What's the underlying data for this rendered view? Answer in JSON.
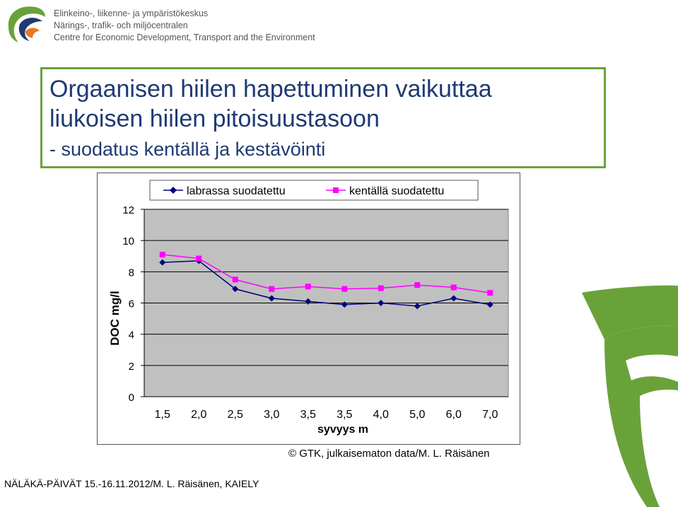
{
  "header": {
    "org_line1": "Elinkeino-, liikenne- ja ympäristökeskus",
    "org_line2": "Närings-, trafik- och miljöcentralen",
    "org_line3": "Centre for Economic Development, Transport and the Environment",
    "logo": "ely-leaf-logo"
  },
  "title": {
    "line1": "Orgaanisen hiilen hapettuminen vaikuttaa",
    "line2": "liukoisen hiilen pitoisuustasoon",
    "line3": "- suodatus kentällä ja kestävöinti"
  },
  "chart_data": {
    "type": "line",
    "categories": [
      "1,5",
      "2,0",
      "2,5",
      "3,0",
      "3,5",
      "3,5",
      "4,0",
      "5,0",
      "6,0",
      "7,0"
    ],
    "series": [
      {
        "name": "labrassa suodatettu",
        "color": "#00007a",
        "marker": "diamond",
        "values": [
          8.6,
          8.7,
          6.9,
          6.3,
          6.1,
          5.9,
          6.0,
          5.8,
          6.3,
          5.9
        ]
      },
      {
        "name": "kentällä suodatettu",
        "color": "#ff00ff",
        "marker": "square",
        "values": [
          9.1,
          8.85,
          7.5,
          6.9,
          7.05,
          6.9,
          6.95,
          7.15,
          7.0,
          6.65
        ]
      }
    ],
    "xlabel": "syvyys m",
    "ylabel": "DOC mg/l",
    "ylim": [
      0,
      12
    ],
    "yticks": [
      "0",
      "2",
      "4",
      "6",
      "8",
      "10",
      "12"
    ],
    "grid": true,
    "legend": "top",
    "plot_background": "#c0c0c0"
  },
  "credit": "© GTK, julkaisematon data/M. L. Räisänen",
  "footer": "NÄLÄKÄ-PÄIVÄT 15.-16.11.2012/M. L. Räisänen, KAIELY",
  "colors": {
    "title_text": "#1f3a73",
    "title_border": "#6aa23a",
    "brand_green": "#6aa23a"
  }
}
